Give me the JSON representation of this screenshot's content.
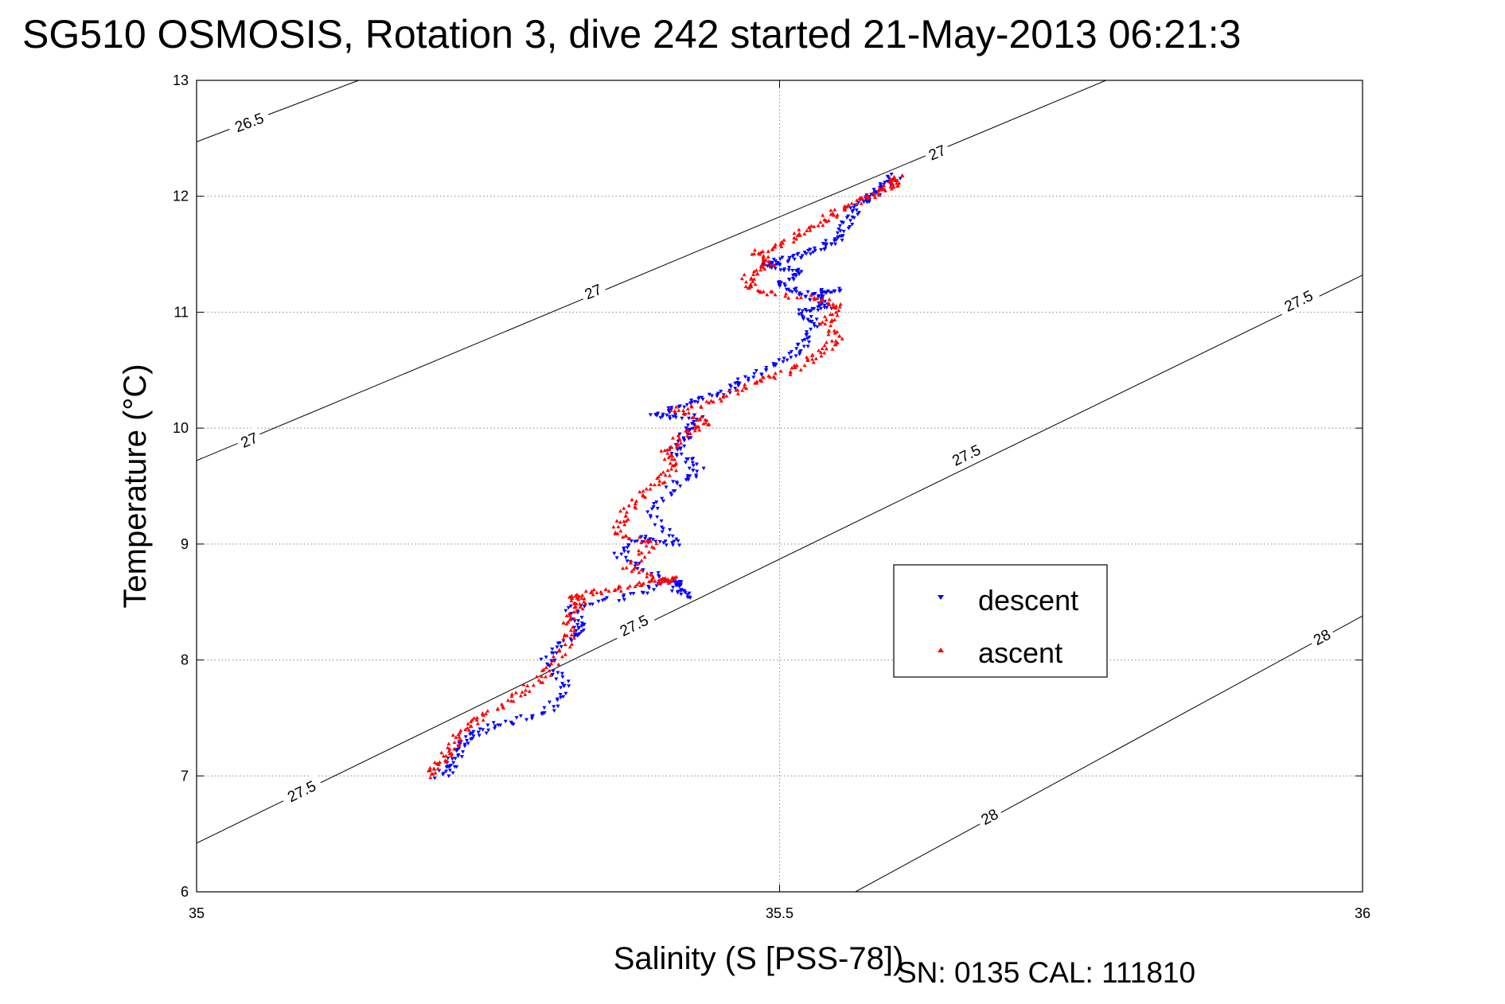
{
  "title": "SG510 OSMOSIS, Rotation 3, dive 242 started 21-May-2013 06:21:3",
  "footer": "SN: 0135  CAL: 111810",
  "colors": {
    "descent": "#0000ff",
    "ascent": "#ff0000",
    "contour": "#000000",
    "grid": "#888888"
  },
  "chart_data": {
    "type": "scatter",
    "xlabel": "Salinity (S [PSS-78])",
    "ylabel": "Temperature (°C)",
    "xlim": [
      35,
      36
    ],
    "ylim": [
      6,
      13
    ],
    "grid": true,
    "legend_position": "center-right",
    "xticks": [
      35,
      35.5,
      36
    ],
    "xtick_labels": [
      "35",
      "35.5",
      "36"
    ],
    "yticks": [
      6,
      7,
      8,
      9,
      10,
      11,
      12,
      13
    ],
    "ytick_labels": [
      "6",
      "7",
      "8",
      "9",
      "10",
      "11",
      "12",
      "13"
    ],
    "density_contours": [
      {
        "level": "26.5",
        "points": [
          [
            35.0,
            12.47
          ],
          [
            35.139,
            13.0
          ]
        ],
        "label_positions": [
          [
            35.045,
            12.64
          ]
        ]
      },
      {
        "level": "27",
        "points": [
          [
            35.0,
            9.72
          ],
          [
            35.78,
            13.0
          ]
        ],
        "label_positions": [
          [
            35.045,
            9.9
          ],
          [
            35.34,
            11.18
          ],
          [
            35.635,
            12.38
          ]
        ]
      },
      {
        "level": "27.5",
        "points": [
          [
            35.0,
            6.42
          ],
          [
            36.0,
            11.32
          ]
        ],
        "label_positions": [
          [
            35.09,
            6.87
          ],
          [
            35.375,
            8.3
          ],
          [
            35.66,
            9.77
          ],
          [
            35.945,
            11.1
          ]
        ]
      },
      {
        "level": "28",
        "points": [
          [
            35.565,
            6.0
          ],
          [
            36.0,
            8.38
          ]
        ],
        "label_positions": [
          [
            35.68,
            6.65
          ],
          [
            35.965,
            8.2
          ]
        ]
      }
    ],
    "series": [
      {
        "name": "descent",
        "marker": "triangle-down",
        "path": [
          [
            35.21,
            7.0
          ],
          [
            35.22,
            7.1
          ],
          [
            35.225,
            7.25
          ],
          [
            35.235,
            7.35
          ],
          [
            35.26,
            7.45
          ],
          [
            35.3,
            7.55
          ],
          [
            35.32,
            7.78
          ],
          [
            35.3,
            8.0
          ],
          [
            35.32,
            8.2
          ],
          [
            35.33,
            8.3
          ],
          [
            35.32,
            8.45
          ],
          [
            35.37,
            8.55
          ],
          [
            35.41,
            8.68
          ],
          [
            35.42,
            8.55
          ],
          [
            35.4,
            8.7
          ],
          [
            35.36,
            8.9
          ],
          [
            35.38,
            9.05
          ],
          [
            35.41,
            9.0
          ],
          [
            35.39,
            9.25
          ],
          [
            35.41,
            9.5
          ],
          [
            35.43,
            9.65
          ],
          [
            35.41,
            9.8
          ],
          [
            35.42,
            9.95
          ],
          [
            35.43,
            10.1
          ],
          [
            35.39,
            10.1
          ],
          [
            35.42,
            10.2
          ],
          [
            35.45,
            10.3
          ],
          [
            35.47,
            10.42
          ],
          [
            35.5,
            10.55
          ],
          [
            35.52,
            10.7
          ],
          [
            35.53,
            10.9
          ],
          [
            35.52,
            11.0
          ],
          [
            35.54,
            11.05
          ],
          [
            35.53,
            11.12
          ],
          [
            35.55,
            11.2
          ],
          [
            35.52,
            11.15
          ],
          [
            35.5,
            11.25
          ],
          [
            35.52,
            11.35
          ],
          [
            35.49,
            11.4
          ],
          [
            35.5,
            11.45
          ],
          [
            35.52,
            11.5
          ],
          [
            35.54,
            11.57
          ],
          [
            35.55,
            11.65
          ],
          [
            35.56,
            11.8
          ],
          [
            35.57,
            11.95
          ],
          [
            35.58,
            12.02
          ],
          [
            35.59,
            12.1
          ],
          [
            35.6,
            12.18
          ]
        ]
      },
      {
        "name": "ascent",
        "marker": "triangle-up",
        "path": [
          [
            35.2,
            7.0
          ],
          [
            35.21,
            7.12
          ],
          [
            35.22,
            7.25
          ],
          [
            35.23,
            7.42
          ],
          [
            35.25,
            7.55
          ],
          [
            35.28,
            7.72
          ],
          [
            35.3,
            7.9
          ],
          [
            35.32,
            8.15
          ],
          [
            35.32,
            8.35
          ],
          [
            35.33,
            8.5
          ],
          [
            35.32,
            8.55
          ],
          [
            35.35,
            8.6
          ],
          [
            35.38,
            8.65
          ],
          [
            35.41,
            8.7
          ],
          [
            35.4,
            8.68
          ],
          [
            35.37,
            8.8
          ],
          [
            35.39,
            9.0
          ],
          [
            35.36,
            9.1
          ],
          [
            35.37,
            9.3
          ],
          [
            35.39,
            9.5
          ],
          [
            35.41,
            9.65
          ],
          [
            35.4,
            9.8
          ],
          [
            35.42,
            9.95
          ],
          [
            35.44,
            10.05
          ],
          [
            35.41,
            10.15
          ],
          [
            35.45,
            10.25
          ],
          [
            35.48,
            10.4
          ],
          [
            35.51,
            10.5
          ],
          [
            35.53,
            10.62
          ],
          [
            35.55,
            10.75
          ],
          [
            35.54,
            10.9
          ],
          [
            35.55,
            11.05
          ],
          [
            35.53,
            11.12
          ],
          [
            35.48,
            11.18
          ],
          [
            35.47,
            11.3
          ],
          [
            35.49,
            11.42
          ],
          [
            35.48,
            11.52
          ],
          [
            35.51,
            11.62
          ],
          [
            35.53,
            11.75
          ],
          [
            35.55,
            11.87
          ],
          [
            35.57,
            11.97
          ],
          [
            35.59,
            12.05
          ],
          [
            35.6,
            12.12
          ],
          [
            35.6,
            12.18
          ]
        ]
      }
    ]
  }
}
